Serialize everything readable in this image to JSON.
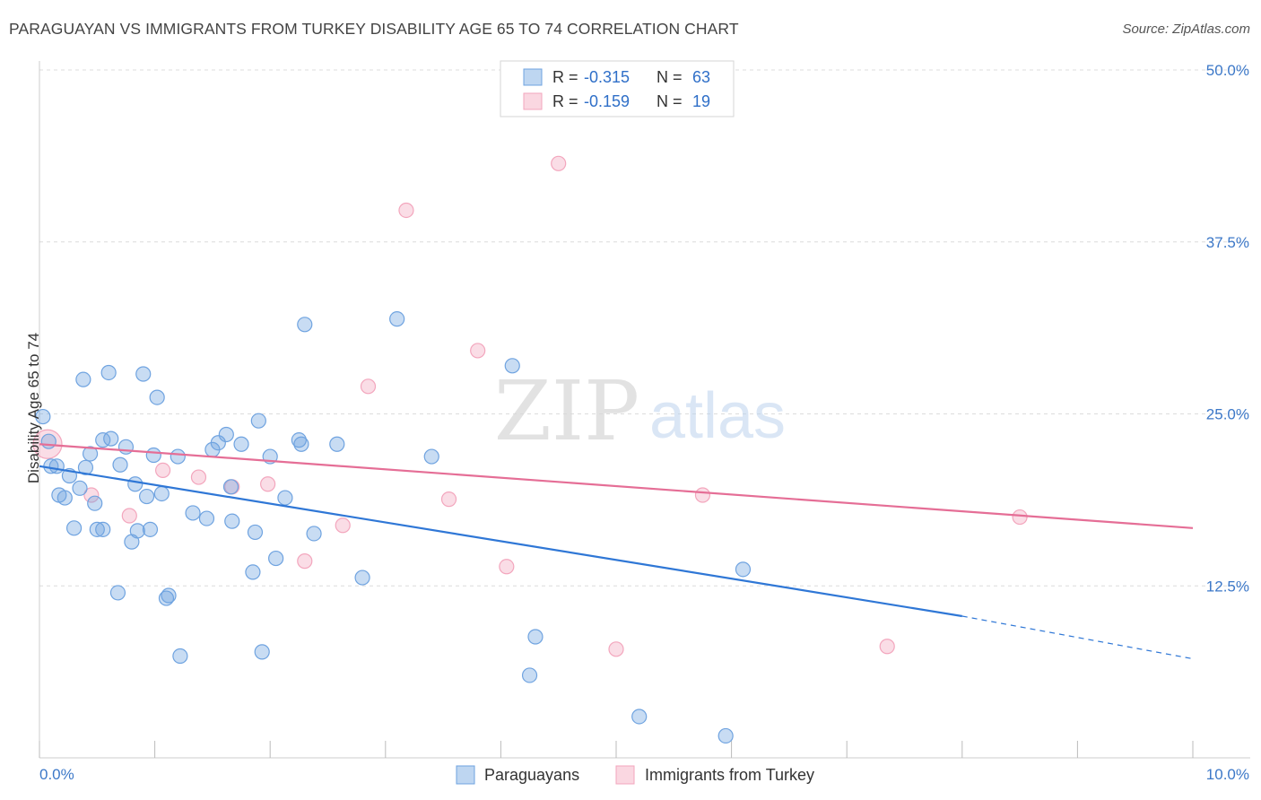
{
  "title": "PARAGUAYAN VS IMMIGRANTS FROM TURKEY DISABILITY AGE 65 TO 74 CORRELATION CHART",
  "source": "Source: ZipAtlas.com",
  "watermark": {
    "zip": "ZIP",
    "atlas": "atlas"
  },
  "chart_data": {
    "type": "scatter",
    "ylabel": "Disability Age 65 to 74",
    "xlim": [
      0,
      10
    ],
    "ylim": [
      0,
      50
    ],
    "x_tick_labels": [
      "0.0%",
      "10.0%"
    ],
    "y_ticks": [
      12.5,
      25.0,
      37.5,
      50.0
    ],
    "y_tick_labels": [
      "12.5%",
      "25.0%",
      "37.5%",
      "50.0%"
    ],
    "grid": true,
    "legend_position": "top-center",
    "series": [
      {
        "name": "Paraguayans",
        "color": "#6fa3e0",
        "line_color": "#2f77d6",
        "R": "-0.315",
        "N": "63",
        "trend": {
          "x0": 0,
          "y0": 21.2,
          "x1": 8.0,
          "y1": 10.3,
          "x_dash_end": 10.0,
          "y_dash_end": 7.2
        },
        "points": [
          [
            0.03,
            24.8
          ],
          [
            0.08,
            23.0
          ],
          [
            0.1,
            21.2
          ],
          [
            0.15,
            21.2
          ],
          [
            0.17,
            19.1
          ],
          [
            0.22,
            18.9
          ],
          [
            0.26,
            20.5
          ],
          [
            0.3,
            16.7
          ],
          [
            0.35,
            19.6
          ],
          [
            0.38,
            27.5
          ],
          [
            0.4,
            21.1
          ],
          [
            0.44,
            22.1
          ],
          [
            0.48,
            18.5
          ],
          [
            0.5,
            16.6
          ],
          [
            0.55,
            16.6
          ],
          [
            0.55,
            23.1
          ],
          [
            0.6,
            28.0
          ],
          [
            0.62,
            23.2
          ],
          [
            0.68,
            12.0
          ],
          [
            0.7,
            21.3
          ],
          [
            0.75,
            22.6
          ],
          [
            0.8,
            15.7
          ],
          [
            0.83,
            19.9
          ],
          [
            0.85,
            16.5
          ],
          [
            0.9,
            27.9
          ],
          [
            0.93,
            19.0
          ],
          [
            0.96,
            16.6
          ],
          [
            0.99,
            22.0
          ],
          [
            1.02,
            26.2
          ],
          [
            1.06,
            19.2
          ],
          [
            1.1,
            11.6
          ],
          [
            1.12,
            11.8
          ],
          [
            1.2,
            21.9
          ],
          [
            1.22,
            7.4
          ],
          [
            1.33,
            17.8
          ],
          [
            1.45,
            17.4
          ],
          [
            1.5,
            22.4
          ],
          [
            1.55,
            22.9
          ],
          [
            1.62,
            23.5
          ],
          [
            1.67,
            17.2
          ],
          [
            1.66,
            19.7
          ],
          [
            1.75,
            22.8
          ],
          [
            1.85,
            13.5
          ],
          [
            1.87,
            16.4
          ],
          [
            1.9,
            24.5
          ],
          [
            1.93,
            7.7
          ],
          [
            2.0,
            21.9
          ],
          [
            2.05,
            14.5
          ],
          [
            2.13,
            18.9
          ],
          [
            2.25,
            23.1
          ],
          [
            2.27,
            22.8
          ],
          [
            2.3,
            31.5
          ],
          [
            2.38,
            16.3
          ],
          [
            2.58,
            22.8
          ],
          [
            2.8,
            13.1
          ],
          [
            3.1,
            31.9
          ],
          [
            3.4,
            21.9
          ],
          [
            4.1,
            28.5
          ],
          [
            4.25,
            6.0
          ],
          [
            4.3,
            8.8
          ],
          [
            6.1,
            13.7
          ],
          [
            5.95,
            1.6
          ],
          [
            5.2,
            3.0
          ]
        ]
      },
      {
        "name": "Immigrants from Turkey",
        "color": "#f3a6bd",
        "line_color": "#e56e96",
        "R": "-0.159",
        "N": "19",
        "trend": {
          "x0": 0,
          "y0": 22.8,
          "x1": 10.0,
          "y1": 16.7
        },
        "points": [
          [
            0.07,
            22.8
          ],
          [
            0.45,
            19.1
          ],
          [
            0.78,
            17.6
          ],
          [
            1.07,
            20.9
          ],
          [
            1.38,
            20.4
          ],
          [
            1.67,
            19.7
          ],
          [
            1.98,
            19.9
          ],
          [
            2.3,
            14.3
          ],
          [
            2.63,
            16.9
          ],
          [
            2.85,
            27.0
          ],
          [
            3.18,
            39.8
          ],
          [
            3.55,
            18.8
          ],
          [
            3.8,
            29.6
          ],
          [
            4.05,
            13.9
          ],
          [
            4.5,
            43.2
          ],
          [
            5.0,
            7.9
          ],
          [
            5.75,
            19.1
          ],
          [
            7.35,
            8.1
          ],
          [
            8.5,
            17.5
          ]
        ]
      }
    ]
  }
}
